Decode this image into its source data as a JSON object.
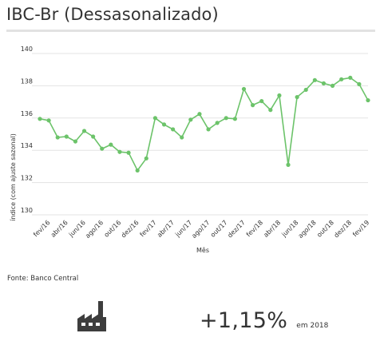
{
  "header": {
    "title": "IBC-Br (Dessasonalizado)"
  },
  "source": "Fonte: Banco Central",
  "highlight": {
    "value": "+1,15%",
    "suffix": "em 2018",
    "icon": "factory-icon"
  },
  "colors": {
    "line": "#6cc36a",
    "grid": "#e3e3e3",
    "text": "#333333"
  },
  "chart_data": {
    "type": "line",
    "title": "",
    "xlabel": "Mês",
    "ylabel": "índice (com ajuste sazonal)",
    "ylim": [
      130,
      140
    ],
    "yticks": [
      130,
      132,
      134,
      136,
      138,
      140
    ],
    "grid": true,
    "x": [
      "jan/16",
      "fev/16",
      "mar/16",
      "abr/16",
      "mai/16",
      "jun/16",
      "jul/16",
      "ago/16",
      "set/16",
      "out/16",
      "nov/16",
      "dez/16",
      "jan/17",
      "fev/17",
      "mar/17",
      "abr/17",
      "mai/17",
      "jun/17",
      "jul/17",
      "ago/17",
      "set/17",
      "out/17",
      "nov/17",
      "dez/17",
      "jan/18",
      "fev/18",
      "mar/18",
      "abr/18",
      "mai/18",
      "jun/18",
      "jul/18",
      "ago/18",
      "set/18",
      "out/18",
      "nov/18",
      "dez/18",
      "jan/19",
      "fev/19"
    ],
    "xtick_labels": [
      "fev/16",
      "abr/16",
      "jun/16",
      "ago/16",
      "out/16",
      "dez/16",
      "fev/17",
      "abr/17",
      "jun/17",
      "ago/17",
      "out/17",
      "dez/17",
      "fev/18",
      "abr/18",
      "jun/18",
      "ago/18",
      "out/18",
      "dez/18",
      "fev/19"
    ],
    "series": [
      {
        "values": [
          135.95,
          135.85,
          134.8,
          134.85,
          134.55,
          135.2,
          134.85,
          134.1,
          134.35,
          133.9,
          133.85,
          132.75,
          133.5,
          136.0,
          135.6,
          135.3,
          134.8,
          135.9,
          136.25,
          135.3,
          135.7,
          136.0,
          135.95,
          137.8,
          136.8,
          137.05,
          136.5,
          137.4,
          133.1,
          137.3,
          137.75,
          138.35,
          138.15,
          138.0,
          138.4,
          138.5,
          138.1,
          137.1
        ]
      }
    ]
  }
}
